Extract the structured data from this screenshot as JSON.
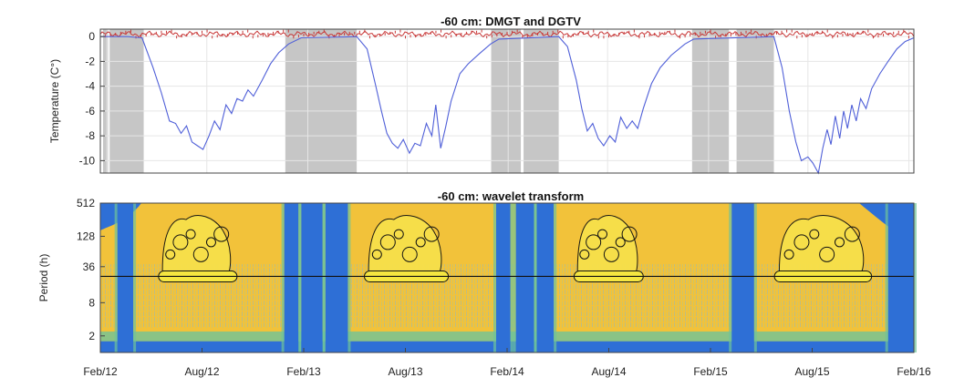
{
  "chart_data": [
    {
      "type": "line",
      "title": "-60 cm: DMGT and DGTV",
      "ylabel": "Temperature (C°)",
      "ylim": [
        -11,
        0.6
      ],
      "yticks": [
        0,
        -2,
        -4,
        -6,
        -8,
        -10
      ],
      "x_tick_labels": [
        "Feb/12",
        "Aug/12",
        "Feb/13",
        "Aug/13",
        "Feb/14",
        "Aug/14",
        "Feb/15",
        "Aug/15",
        "Feb/16"
      ],
      "grey_periods": [
        [
          "2012-01-25",
          "2012-02-03"
        ],
        [
          "2012-02-06",
          "2012-04-08"
        ],
        [
          "2012-12-22",
          "2013-05-01"
        ],
        [
          "2014-01-01",
          "2014-02-24"
        ],
        [
          "2014-03-01",
          "2014-05-04"
        ],
        [
          "2015-01-02",
          "2015-03-10"
        ],
        [
          "2015-03-24",
          "2015-05-31"
        ]
      ],
      "series": [
        {
          "color": "#4f5fd8",
          "points": [
            [
              "2012-01-20",
              0.0
            ],
            [
              "2012-03-10",
              0.0
            ],
            [
              "2012-04-05",
              -0.1
            ],
            [
              "2012-04-25",
              -2.5
            ],
            [
              "2012-05-10",
              -4.5
            ],
            [
              "2012-05-25",
              -6.8
            ],
            [
              "2012-06-05",
              -7.0
            ],
            [
              "2012-06-15",
              -7.8
            ],
            [
              "2012-06-25",
              -7.2
            ],
            [
              "2012-07-05",
              -8.5
            ],
            [
              "2012-07-15",
              -8.8
            ],
            [
              "2012-07-25",
              -9.1
            ],
            [
              "2012-08-05",
              -8.0
            ],
            [
              "2012-08-15",
              -6.8
            ],
            [
              "2012-08-25",
              -7.5
            ],
            [
              "2012-09-05",
              -5.5
            ],
            [
              "2012-09-15",
              -6.2
            ],
            [
              "2012-09-25",
              -5.0
            ],
            [
              "2012-10-05",
              -5.2
            ],
            [
              "2012-10-15",
              -4.3
            ],
            [
              "2012-10-25",
              -4.8
            ],
            [
              "2012-11-10",
              -3.5
            ],
            [
              "2012-11-25",
              -2.2
            ],
            [
              "2012-12-10",
              -1.3
            ],
            [
              "2012-12-28",
              -0.6
            ],
            [
              "2013-01-20",
              -0.1
            ],
            [
              "2013-05-01",
              0.0
            ],
            [
              "2013-05-20",
              -1.0
            ],
            [
              "2013-06-05",
              -4.0
            ],
            [
              "2013-06-15",
              -6.0
            ],
            [
              "2013-06-25",
              -7.8
            ],
            [
              "2013-07-05",
              -8.6
            ],
            [
              "2013-07-15",
              -9.0
            ],
            [
              "2013-07-25",
              -8.3
            ],
            [
              "2013-08-05",
              -9.4
            ],
            [
              "2013-08-15",
              -8.6
            ],
            [
              "2013-08-25",
              -8.8
            ],
            [
              "2013-09-05",
              -7.0
            ],
            [
              "2013-09-15",
              -8.0
            ],
            [
              "2013-09-22",
              -5.5
            ],
            [
              "2013-10-01",
              -9.0
            ],
            [
              "2013-10-10",
              -7.3
            ],
            [
              "2013-10-20",
              -5.2
            ],
            [
              "2013-11-05",
              -3.0
            ],
            [
              "2013-11-20",
              -2.2
            ],
            [
              "2013-12-10",
              -1.4
            ],
            [
              "2013-12-31",
              -0.6
            ],
            [
              "2014-01-15",
              -0.2
            ],
            [
              "2014-05-04",
              0.0
            ],
            [
              "2014-05-20",
              -0.8
            ],
            [
              "2014-06-05",
              -3.5
            ],
            [
              "2014-06-15",
              -5.8
            ],
            [
              "2014-06-25",
              -7.6
            ],
            [
              "2014-07-05",
              -7.0
            ],
            [
              "2014-07-15",
              -8.2
            ],
            [
              "2014-07-25",
              -8.8
            ],
            [
              "2014-08-05",
              -8.0
            ],
            [
              "2014-08-15",
              -8.5
            ],
            [
              "2014-08-25",
              -6.5
            ],
            [
              "2014-09-05",
              -7.4
            ],
            [
              "2014-09-15",
              -6.8
            ],
            [
              "2014-09-25",
              -7.4
            ],
            [
              "2014-10-05",
              -5.8
            ],
            [
              "2014-10-20",
              -3.8
            ],
            [
              "2014-11-05",
              -2.5
            ],
            [
              "2014-11-25",
              -1.5
            ],
            [
              "2014-12-20",
              -0.6
            ],
            [
              "2015-01-05",
              -0.2
            ],
            [
              "2015-05-31",
              0.0
            ],
            [
              "2015-06-15",
              -2.5
            ],
            [
              "2015-06-28",
              -6.0
            ],
            [
              "2015-07-10",
              -8.5
            ],
            [
              "2015-07-20",
              -10.0
            ],
            [
              "2015-08-01",
              -9.7
            ],
            [
              "2015-08-10",
              -10.2
            ],
            [
              "2015-08-20",
              -11.0
            ],
            [
              "2015-08-28",
              -9.0
            ],
            [
              "2015-09-05",
              -7.5
            ],
            [
              "2015-09-12",
              -8.7
            ],
            [
              "2015-09-20",
              -6.4
            ],
            [
              "2015-09-28",
              -8.2
            ],
            [
              "2015-10-05",
              -6.0
            ],
            [
              "2015-10-12",
              -7.4
            ],
            [
              "2015-10-20",
              -5.5
            ],
            [
              "2015-10-28",
              -6.8
            ],
            [
              "2015-11-05",
              -5.0
            ],
            [
              "2015-11-15",
              -5.8
            ],
            [
              "2015-11-25",
              -4.2
            ],
            [
              "2015-12-10",
              -3.0
            ],
            [
              "2015-12-25",
              -2.0
            ],
            [
              "2016-01-10",
              -1.0
            ],
            [
              "2016-01-25",
              -0.4
            ],
            [
              "2016-02-10",
              -0.1
            ]
          ]
        },
        {
          "color": "#c83838",
          "points": [
            [
              "2012-01-20",
              0.2
            ],
            [
              "2016-02-10",
              0.2
            ]
          ]
        }
      ]
    },
    {
      "type": "heatmap",
      "title": "-60 cm: wavelet transform",
      "ylabel": "Period (h)",
      "yscale": "log2",
      "yticks": [
        512,
        128,
        36,
        8,
        2
      ],
      "ylim": [
        1,
        512
      ],
      "x_tick_labels": [
        "Feb/12",
        "Aug/12",
        "Feb/13",
        "Aug/13",
        "Feb/14",
        "Aug/14",
        "Feb/15",
        "Aug/15",
        "Feb/16"
      ],
      "colors": {
        "high": "#f2c23a",
        "mid": "#6fc39a",
        "low": "#2e6fd6",
        "contour": "#111111",
        "daily_band": "#f5e640"
      },
      "reference_period_h": 24,
      "low_power_bands": [
        [
          "2012-02-20",
          "2012-03-20"
        ],
        [
          "2012-12-20",
          "2013-01-15"
        ],
        [
          "2013-01-20",
          "2013-02-28"
        ],
        [
          "2013-03-05",
          "2013-04-15"
        ],
        [
          "2014-01-10",
          "2014-02-05"
        ],
        [
          "2014-02-15",
          "2014-03-20"
        ],
        [
          "2014-03-25",
          "2014-04-25"
        ],
        [
          "2015-03-15",
          "2015-04-25"
        ],
        [
          "2015-12-25",
          "2016-02-10"
        ]
      ],
      "daily_cycle_periods": [
        [
          "2012-05-05",
          "2012-09-25"
        ],
        [
          "2013-05-15",
          "2013-10-15"
        ],
        [
          "2014-06-01",
          "2014-10-05"
        ],
        [
          "2015-06-01",
          "2015-11-25"
        ]
      ]
    }
  ]
}
